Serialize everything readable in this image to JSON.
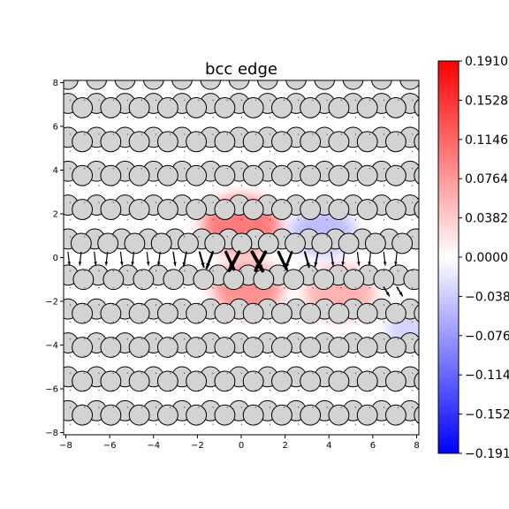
{
  "chart_data": {
    "type": "scatter",
    "title": "bcc edge",
    "xlabel": "",
    "ylabel": "",
    "xlim": [
      -8.1,
      8.1
    ],
    "ylim": [
      -8.1,
      8.1
    ],
    "x_ticks": [
      "−8",
      "−6",
      "−4",
      "−2",
      "0",
      "2",
      "4",
      "6",
      "8"
    ],
    "y_ticks": [
      "−8",
      "−6",
      "−4",
      "−2",
      "0",
      "2",
      "4",
      "6",
      "8"
    ],
    "grid": false,
    "colorbar": {
      "min": -0.191,
      "max": 0.191,
      "cmap": "bwr",
      "tick_labels": [
        "0.1910",
        "0.1528",
        "0.1146",
        "0.0764",
        "0.0382",
        "0.0000",
        "−0.0382",
        "−0.0764",
        "−0.1146",
        "−0.1528",
        "−0.1910"
      ]
    },
    "atom_rows": [
      {
        "y": 8.15,
        "x_start": -7.9,
        "spacing": 1.3,
        "count": 13
      },
      {
        "y": 7.05,
        "x_start": -7.9,
        "spacing": 1.3,
        "count": 13
      },
      {
        "y": 6.85,
        "x_start": -7.25,
        "spacing": 1.3,
        "count": 13
      },
      {
        "y": 5.5,
        "x_start": -7.9,
        "spacing": 1.3,
        "count": 13
      },
      {
        "y": 5.3,
        "x_start": -7.25,
        "spacing": 1.3,
        "count": 13
      },
      {
        "y": 3.95,
        "x_start": -7.9,
        "spacing": 1.3,
        "count": 13
      },
      {
        "y": 3.75,
        "x_start": -7.25,
        "spacing": 1.3,
        "count": 13
      },
      {
        "y": 2.4,
        "x_start": -7.9,
        "spacing": 1.3,
        "count": 13
      },
      {
        "y": 2.2,
        "x_start": -7.25,
        "spacing": 1.3,
        "count": 13
      },
      {
        "y": 0.85,
        "x_start": -7.9,
        "spacing": 1.22,
        "count": 14
      },
      {
        "y": 0.65,
        "x_start": -7.3,
        "spacing": 1.22,
        "count": 14
      },
      {
        "y": -0.8,
        "x_start": -7.9,
        "spacing": 1.37,
        "count": 12
      },
      {
        "y": -1.0,
        "x_start": -7.2,
        "spacing": 1.37,
        "count": 12
      },
      {
        "y": -2.35,
        "x_start": -7.9,
        "spacing": 1.3,
        "count": 13
      },
      {
        "y": -2.55,
        "x_start": -7.25,
        "spacing": 1.3,
        "count": 13
      },
      {
        "y": -3.9,
        "x_start": -7.9,
        "spacing": 1.3,
        "count": 13
      },
      {
        "y": -4.1,
        "x_start": -7.25,
        "spacing": 1.3,
        "count": 13
      },
      {
        "y": -5.45,
        "x_start": -7.9,
        "spacing": 1.3,
        "count": 13
      },
      {
        "y": -5.65,
        "x_start": -7.25,
        "spacing": 1.3,
        "count": 13
      },
      {
        "y": -7.0,
        "x_start": -7.9,
        "spacing": 1.3,
        "count": 13
      },
      {
        "y": -7.2,
        "x_start": -7.25,
        "spacing": 1.3,
        "count": 13
      }
    ],
    "field_blobs": [
      {
        "x": 0.0,
        "y": 1.5,
        "rx": 1.8,
        "ry": 1.3,
        "value": 0.06
      },
      {
        "x": 0.3,
        "y": -1.4,
        "rx": 1.6,
        "ry": 1.2,
        "value": 0.05
      },
      {
        "x": 3.7,
        "y": 1.2,
        "rx": 1.5,
        "ry": 1.1,
        "value": -0.03
      },
      {
        "x": 4.5,
        "y": -1.6,
        "rx": 1.6,
        "ry": 1.2,
        "value": 0.035
      },
      {
        "x": 7.6,
        "y": -3.3,
        "rx": 1.0,
        "ry": 0.9,
        "value": -0.02
      }
    ]
  }
}
